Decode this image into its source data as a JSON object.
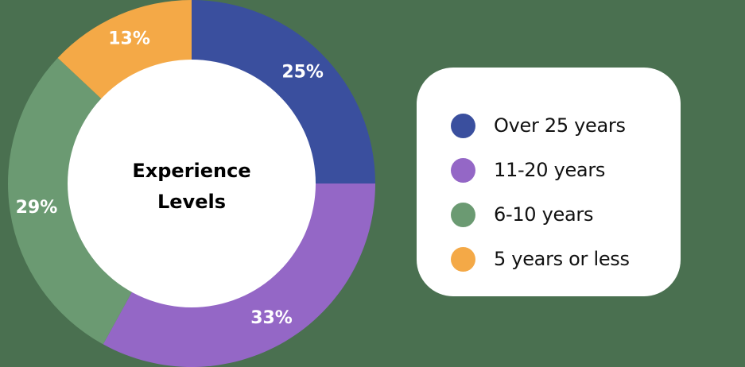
{
  "chart_data": {
    "type": "pie",
    "subtype": "donut",
    "title": "Experience Levels",
    "center_label_lines": [
      "Experience",
      "Levels"
    ],
    "categories": [
      "Over 25 years",
      "11-20 years",
      "6-10 years",
      "5 years or less"
    ],
    "values": [
      25,
      33,
      29,
      13
    ],
    "value_labels": [
      "25%",
      "33%",
      "29%",
      "13%"
    ],
    "colors": [
      "#3a4f9e",
      "#9467c6",
      "#6b9a72",
      "#f4a947"
    ],
    "start_angle": "12 o'clock",
    "direction": "clockwise",
    "legend_position": "right"
  },
  "center": {
    "line1": "Experience",
    "line2": "Levels"
  },
  "legend": {
    "items": [
      {
        "label": "Over 25 years",
        "color": "#3a4f9e"
      },
      {
        "label": "11-20 years",
        "color": "#9467c6"
      },
      {
        "label": "6-10 years",
        "color": "#6b9a72"
      },
      {
        "label": "5 years or less",
        "color": "#f4a947"
      }
    ]
  },
  "colors": {
    "background": "#4a7050",
    "legend_bg": "#ffffff",
    "hole": "#ffffff"
  }
}
